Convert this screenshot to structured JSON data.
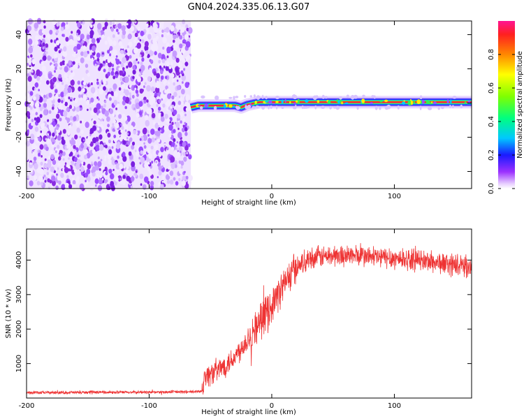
{
  "title": "GN04.2024.335.06.13.G07",
  "chart_data": [
    {
      "type": "heatmap",
      "panel": "top",
      "xlabel": "Height of straight line (km)",
      "ylabel": "Frequency (Hz)",
      "xlim": [
        -200,
        163
      ],
      "ylim": [
        -50,
        48
      ],
      "xticks": [
        -200,
        -100,
        0,
        100
      ],
      "yticks": [
        -40,
        -20,
        0,
        20,
        40
      ],
      "noise_region_x": [
        -200,
        -66
      ],
      "signal_track": {
        "x": [
          -66,
          -60,
          -40,
          -30,
          -25,
          -20,
          -10,
          0,
          20,
          50,
          100,
          163
        ],
        "y": [
          -2.5,
          -1.5,
          -1.5,
          -1.5,
          -2.5,
          -1,
          0.5,
          0.5,
          0.5,
          0.5,
          0.5,
          0.5
        ]
      },
      "colorbar": {
        "label": "Normalized spectral amplitude",
        "range": [
          0,
          1
        ],
        "ticks": [
          0.0,
          0.2,
          0.4,
          0.6,
          0.8
        ],
        "tick_labels": [
          "0.0",
          "0.2",
          "0.4",
          "0.6",
          "0.8"
        ]
      },
      "grid": false
    },
    {
      "type": "line",
      "panel": "bottom",
      "xlabel": "Height of straight line (km)",
      "ylabel": "SNR (10 * v/v)",
      "xlim": [
        -200,
        163
      ],
      "ylim": [
        0,
        4900
      ],
      "xticks": [
        -200,
        -100,
        0,
        100
      ],
      "yticks": [
        1000,
        2000,
        3000,
        4000
      ],
      "series": [
        {
          "color": "#ee3333",
          "x": [
            -200,
            -180,
            -160,
            -140,
            -120,
            -100,
            -80,
            -62,
            -57,
            -55,
            -50,
            -40,
            -30,
            -20,
            -10,
            0,
            10,
            20,
            30,
            40,
            60,
            80,
            100,
            120,
            140,
            163
          ],
          "y": [
            150,
            160,
            160,
            170,
            165,
            170,
            175,
            180,
            210,
            600,
            700,
            900,
            1200,
            1700,
            2200,
            2700,
            3300,
            3800,
            4050,
            4100,
            4150,
            4100,
            4050,
            4000,
            3900,
            3800
          ]
        }
      ],
      "grid": false
    }
  ]
}
